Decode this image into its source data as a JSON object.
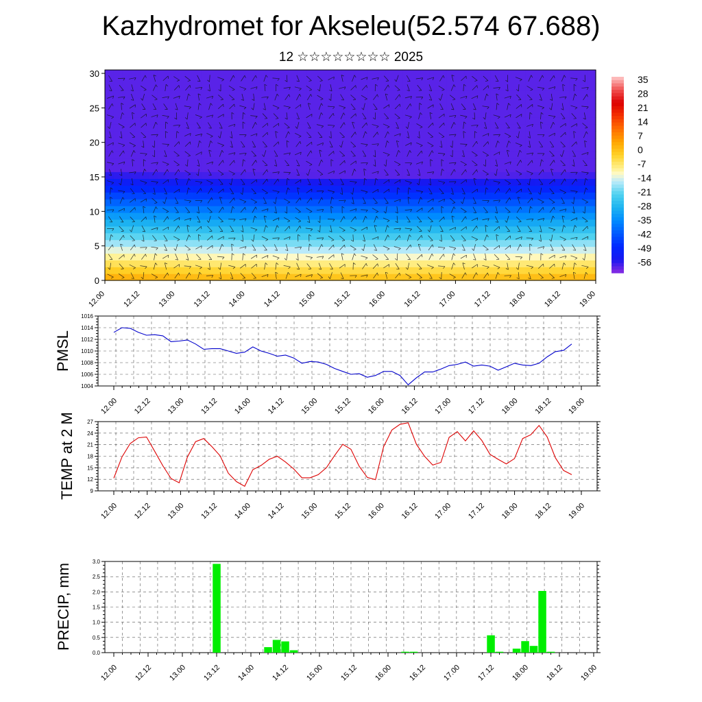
{
  "title": "Kazhydromet for Akseleu(52.574 67.688)",
  "subtitle": "12 ☆☆☆☆☆☆☆☆ 2025",
  "x_ticks": [
    "12.00",
    "12.12",
    "13.00",
    "13.12",
    "14.00",
    "14.12",
    "15.00",
    "15.12",
    "16.00",
    "16.12",
    "17.00",
    "17.12",
    "18.00",
    "18.12",
    "19.00"
  ],
  "chart_data": [
    {
      "type": "heatmap",
      "title": "",
      "xlabel": "",
      "ylabel": "",
      "x_ticks": [
        "12.00",
        "12.12",
        "13.00",
        "13.12",
        "14.00",
        "14.12",
        "15.00",
        "15.12",
        "16.00",
        "16.12",
        "17.00",
        "17.12",
        "18.00",
        "18.12",
        "19.00"
      ],
      "y_ticks": [
        0,
        5,
        10,
        15,
        20,
        25,
        30
      ],
      "ylim": [
        0,
        30.5
      ],
      "colorbar_labels": [
        "35",
        "28",
        "21",
        "14",
        "7",
        "0",
        "-7",
        "-14",
        "-21",
        "-28",
        "-35",
        "-42",
        "-49",
        "-56"
      ],
      "colorbar_range": [
        -63,
        42
      ],
      "overlay": "wind barbs"
    },
    {
      "type": "line",
      "ylabel": "PMSL",
      "ylim": [
        1004,
        1016
      ],
      "y_ticks": [
        1004,
        1006,
        1008,
        1010,
        1012,
        1014,
        1016
      ],
      "grid": true,
      "series_color": "#0000cc",
      "values": [
        1013.2,
        1014.0,
        1013.9,
        1013.2,
        1012.7,
        1012.8,
        1012.6,
        1011.6,
        1011.7,
        1011.9,
        1011.2,
        1010.3,
        1010.4,
        1010.4,
        1010.0,
        1009.6,
        1009.8,
        1010.7,
        1010.0,
        1009.6,
        1009.1,
        1009.3,
        1008.8,
        1007.9,
        1008.2,
        1008.1,
        1007.7,
        1007.0,
        1006.5,
        1006.0,
        1006.1,
        1005.5,
        1005.8,
        1006.5,
        1006.5,
        1005.8,
        1004.2,
        1005.4,
        1006.4,
        1006.4,
        1006.9,
        1007.5,
        1007.7,
        1008.1,
        1007.4,
        1007.6,
        1007.4,
        1006.7,
        1007.3,
        1007.9,
        1007.6,
        1007.5,
        1007.9,
        1009.0,
        1009.9,
        1010.1,
        1011.2
      ]
    },
    {
      "type": "line",
      "ylabel": "TEMP at 2 M",
      "ylim": [
        9,
        27
      ],
      "y_ticks": [
        9,
        12,
        15,
        18,
        21,
        24,
        27
      ],
      "grid": true,
      "series_color": "#dd0000",
      "values": [
        12.3,
        17.8,
        21.3,
        22.8,
        23.0,
        19.3,
        15.5,
        12.2,
        11.1,
        17.8,
        21.8,
        22.6,
        20.5,
        18.1,
        13.6,
        11.4,
        10.2,
        14.5,
        15.6,
        17.2,
        18.0,
        16.5,
        14.7,
        12.4,
        12.4,
        13.2,
        15.0,
        18.2,
        21.1,
        19.8,
        15.4,
        12.5,
        11.9,
        20.5,
        24.8,
        26.3,
        26.7,
        21.1,
        18.0,
        15.7,
        16.4,
        22.9,
        24.4,
        22.0,
        24.6,
        22.1,
        18.5,
        17.2,
        16.0,
        17.4,
        22.6,
        23.6,
        26.0,
        23.0,
        17.6,
        14.3,
        13.2
      ]
    },
    {
      "type": "bar",
      "ylabel": "PRECIP, mm",
      "ylim": [
        0,
        3.0
      ],
      "y_ticks": [
        "0.0",
        "0.5",
        "1.0",
        "1.5",
        "2.0",
        "2.5",
        "3.0"
      ],
      "grid": true,
      "series_color": "#00ee00",
      "values": [
        0,
        0,
        0,
        0,
        0,
        0,
        0,
        0,
        0,
        0,
        0,
        0,
        2.92,
        0,
        0,
        0,
        0,
        0,
        0.18,
        0.42,
        0.37,
        0.08,
        0,
        0,
        0,
        0,
        0,
        0,
        0,
        0,
        0,
        0,
        0,
        0,
        0.03,
        0.03,
        0,
        0,
        0,
        0,
        0,
        0,
        0,
        0,
        0.57,
        0.03,
        0,
        0.13,
        0.38,
        0.22,
        2.03,
        0.03,
        0,
        0,
        0,
        0
      ]
    }
  ]
}
